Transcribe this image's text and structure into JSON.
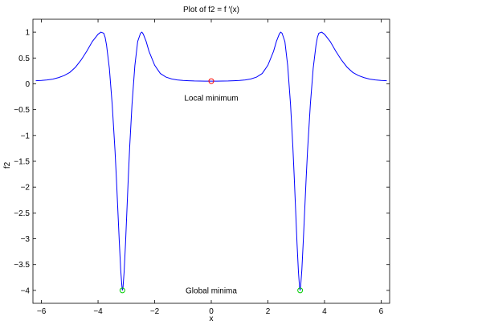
{
  "chart_data": {
    "type": "line",
    "title": "Plot of f2 = f ′(x)",
    "xlabel": "x",
    "ylabel": "f2",
    "xlim": [
      -6.3,
      6.3
    ],
    "ylim": [
      -4.25,
      1.25
    ],
    "xticks": [
      -6,
      -4,
      -2,
      0,
      2,
      4,
      6
    ],
    "yticks": [
      1,
      0.5,
      0,
      -0.5,
      -1,
      -1.5,
      -2,
      -2.5,
      -3,
      -3.5,
      -4
    ],
    "grid": false,
    "series": [
      {
        "color": "#0000ff",
        "x": [
          -6.2,
          -6.0,
          -5.8,
          -5.6,
          -5.4,
          -5.2,
          -5.0,
          -4.8,
          -4.6,
          -4.4,
          -4.2,
          -4.0,
          -3.9,
          -3.8,
          -3.75,
          -3.7,
          -3.6,
          -3.5,
          -3.4,
          -3.35,
          -3.3,
          -3.25,
          -3.2,
          -3.16,
          -3.14,
          -3.12,
          -3.08,
          -3.03,
          -2.98,
          -2.93,
          -2.88,
          -2.8,
          -2.7,
          -2.6,
          -2.5,
          -2.45,
          -2.4,
          -2.3,
          -2.2,
          -2.0,
          -1.8,
          -1.6,
          -1.4,
          -1.2,
          -1.0,
          -0.8,
          -0.6,
          -0.4,
          -0.2,
          0.0,
          0.2,
          0.4,
          0.6,
          0.8,
          1.0,
          1.2,
          1.4,
          1.6,
          1.8,
          2.0,
          2.2,
          2.3,
          2.4,
          2.45,
          2.5,
          2.6,
          2.7,
          2.8,
          2.88,
          2.93,
          2.98,
          3.03,
          3.08,
          3.12,
          3.14,
          3.16,
          3.2,
          3.25,
          3.3,
          3.35,
          3.4,
          3.5,
          3.6,
          3.7,
          3.75,
          3.8,
          3.9,
          4.0,
          4.2,
          4.4,
          4.6,
          4.8,
          5.0,
          5.2,
          5.4,
          5.6,
          5.8,
          6.0,
          6.2
        ],
        "y": [
          0.06,
          0.065,
          0.075,
          0.09,
          0.12,
          0.16,
          0.22,
          0.32,
          0.46,
          0.63,
          0.82,
          0.96,
          1.0,
          0.98,
          0.9,
          0.75,
          0.3,
          -0.4,
          -1.3,
          -1.85,
          -2.45,
          -3.05,
          -3.6,
          -3.9,
          -4.0,
          -3.95,
          -3.65,
          -3.1,
          -2.45,
          -1.8,
          -1.2,
          -0.4,
          0.35,
          0.82,
          0.98,
          1.0,
          0.96,
          0.82,
          0.63,
          0.36,
          0.2,
          0.13,
          0.095,
          0.075,
          0.065,
          0.06,
          0.055,
          0.053,
          0.052,
          0.052,
          0.052,
          0.053,
          0.055,
          0.06,
          0.065,
          0.075,
          0.095,
          0.13,
          0.2,
          0.36,
          0.63,
          0.82,
          0.96,
          1.0,
          0.98,
          0.82,
          0.35,
          -0.4,
          -1.2,
          -1.8,
          -2.45,
          -3.1,
          -3.65,
          -3.95,
          -4.0,
          -3.9,
          -3.6,
          -3.05,
          -2.45,
          -1.85,
          -1.3,
          -0.4,
          0.3,
          0.75,
          0.9,
          0.98,
          1.0,
          0.96,
          0.82,
          0.63,
          0.46,
          0.32,
          0.22,
          0.16,
          0.12,
          0.09,
          0.075,
          0.065,
          0.06
        ]
      }
    ],
    "markers": [
      {
        "x": 0,
        "y": 0.052,
        "color": "#ff0000",
        "shape": "circle"
      },
      {
        "x": -3.14,
        "y": -4.0,
        "color": "#00cc00",
        "shape": "circle"
      },
      {
        "x": 3.14,
        "y": -4.0,
        "color": "#00cc00",
        "shape": "circle"
      }
    ],
    "annotations": [
      {
        "text": "Local minimum",
        "x": 0,
        "y": -0.27
      },
      {
        "text": "Global minima",
        "x": 0,
        "y": -4.0
      }
    ]
  }
}
